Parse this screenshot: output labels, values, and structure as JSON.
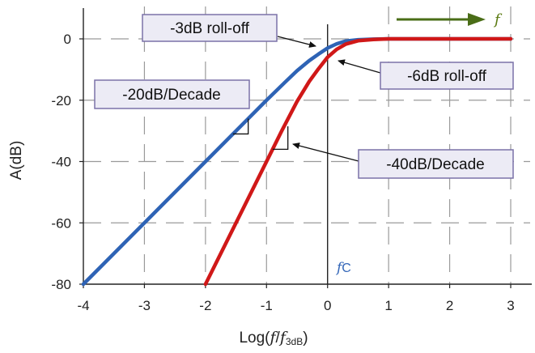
{
  "colors": {
    "first_order": "#2e63b5",
    "second_order": "#d01818",
    "grid": "#9a9a9a",
    "callout_fill": "#ecebf5",
    "callout_border": "#7b72a8",
    "frequency_arrow": "#4a6d17",
    "fc_label": "#3366b8"
  },
  "chart_data": {
    "type": "line",
    "xlim": [
      -4,
      3
    ],
    "ylim": [
      -80,
      0
    ],
    "grid": true,
    "x_ticks": [
      -4,
      -3,
      -2,
      -1,
      0,
      1,
      2,
      3
    ],
    "y_ticks": [
      0,
      -20,
      -40,
      -60,
      -80
    ],
    "x_tick_labels": [
      "-4",
      "-3",
      "-2",
      "-1",
      "0",
      "1",
      "2",
      "3"
    ],
    "y_tick_labels": [
      "0",
      "-20",
      "-40",
      "-60",
      "-80"
    ],
    "ylabel": "A(dB)",
    "xlabel": {
      "prefix": "Log(",
      "f": "f",
      "slash": "/",
      "f2": "f",
      "subscript": "3dB",
      "suffix": ")"
    },
    "series": [
      {
        "x": [
          -4,
          -3,
          -2,
          -1,
          -0.7,
          -0.5,
          -0.3,
          -0.15,
          0,
          0.15,
          0.3,
          0.5,
          0.75,
          1,
          2,
          3
        ],
        "y": [
          -80,
          -60,
          -40,
          -20,
          -14.2,
          -10.4,
          -7.1,
          -5.0,
          -3.0,
          -1.6,
          -0.7,
          -0.3,
          -0.1,
          0,
          0,
          0
        ]
      },
      {
        "x": [
          -2,
          -1.5,
          -1,
          -0.75,
          -0.5,
          -0.3,
          -0.15,
          0,
          0.15,
          0.3,
          0.5,
          0.75,
          1,
          2,
          3
        ],
        "y": [
          -80,
          -60,
          -40,
          -30,
          -20.4,
          -13.9,
          -9.8,
          -6.0,
          -3.4,
          -1.7,
          -0.6,
          -0.2,
          0,
          0,
          0
        ]
      }
    ]
  },
  "annotations": {
    "roll_off_3db": "-3dB roll-off",
    "roll_off_6db": "-6dB roll-off",
    "slope_20": "-20dB/Decade",
    "slope_40": "-40dB/Decade",
    "fc_f": "f",
    "fc_sub": "C",
    "freq_arrow_label": "f"
  }
}
